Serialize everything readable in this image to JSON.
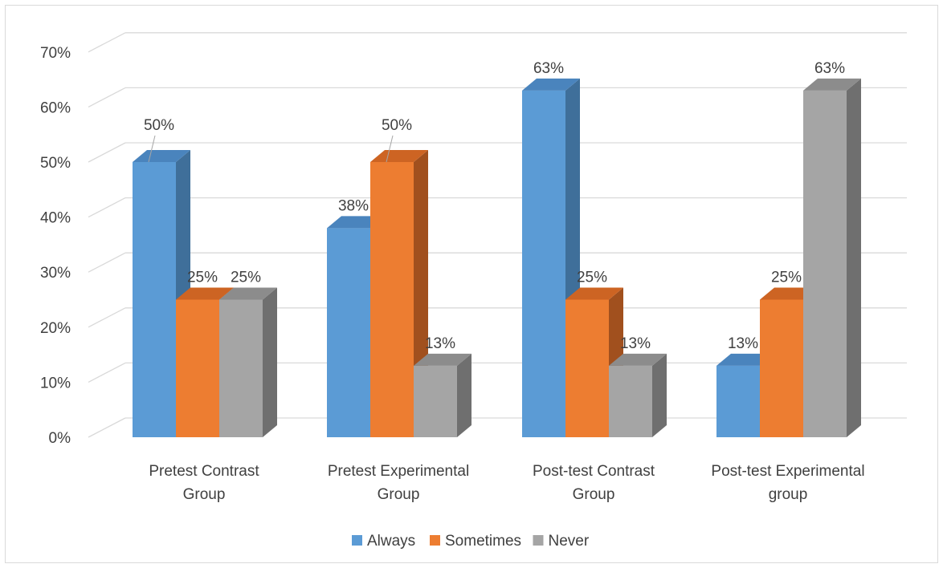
{
  "chart_data": {
    "type": "bar",
    "title": "",
    "xlabel": "",
    "ylabel": "",
    "ylim": [
      0,
      70
    ],
    "y_tick_step": 10,
    "y_tick_labels": [
      "0%",
      "10%",
      "20%",
      "30%",
      "40%",
      "50%",
      "60%",
      "70%"
    ],
    "grid": true,
    "legend_position": "bottom",
    "categories": [
      [
        "Pretest Contrast",
        "Group"
      ],
      [
        "Pretest Experimental",
        "Group"
      ],
      [
        "Post-test Contrast",
        "Group"
      ],
      [
        "Post-test Experimental",
        "group"
      ]
    ],
    "series": [
      {
        "name": "Always",
        "color": "#5b9bd5",
        "top_color": "#4a84bd",
        "side_color": "#3f6f9a",
        "values": [
          50,
          38,
          63,
          13
        ],
        "data_labels": [
          "50%",
          "38%",
          "63%",
          "13%"
        ]
      },
      {
        "name": "Sometimes",
        "color": "#ed7d31",
        "top_color": "#cd6423",
        "side_color": "#a1501e",
        "values": [
          25,
          50,
          25,
          25
        ],
        "data_labels": [
          "25%",
          "50%",
          "25%",
          "25%"
        ]
      },
      {
        "name": "Never",
        "color": "#a5a5a5",
        "top_color": "#8c8c8c",
        "side_color": "#6f6f6f",
        "values": [
          25,
          13,
          13,
          63
        ],
        "data_labels": [
          "25%",
          "13%",
          "13%",
          "63%"
        ]
      }
    ]
  }
}
